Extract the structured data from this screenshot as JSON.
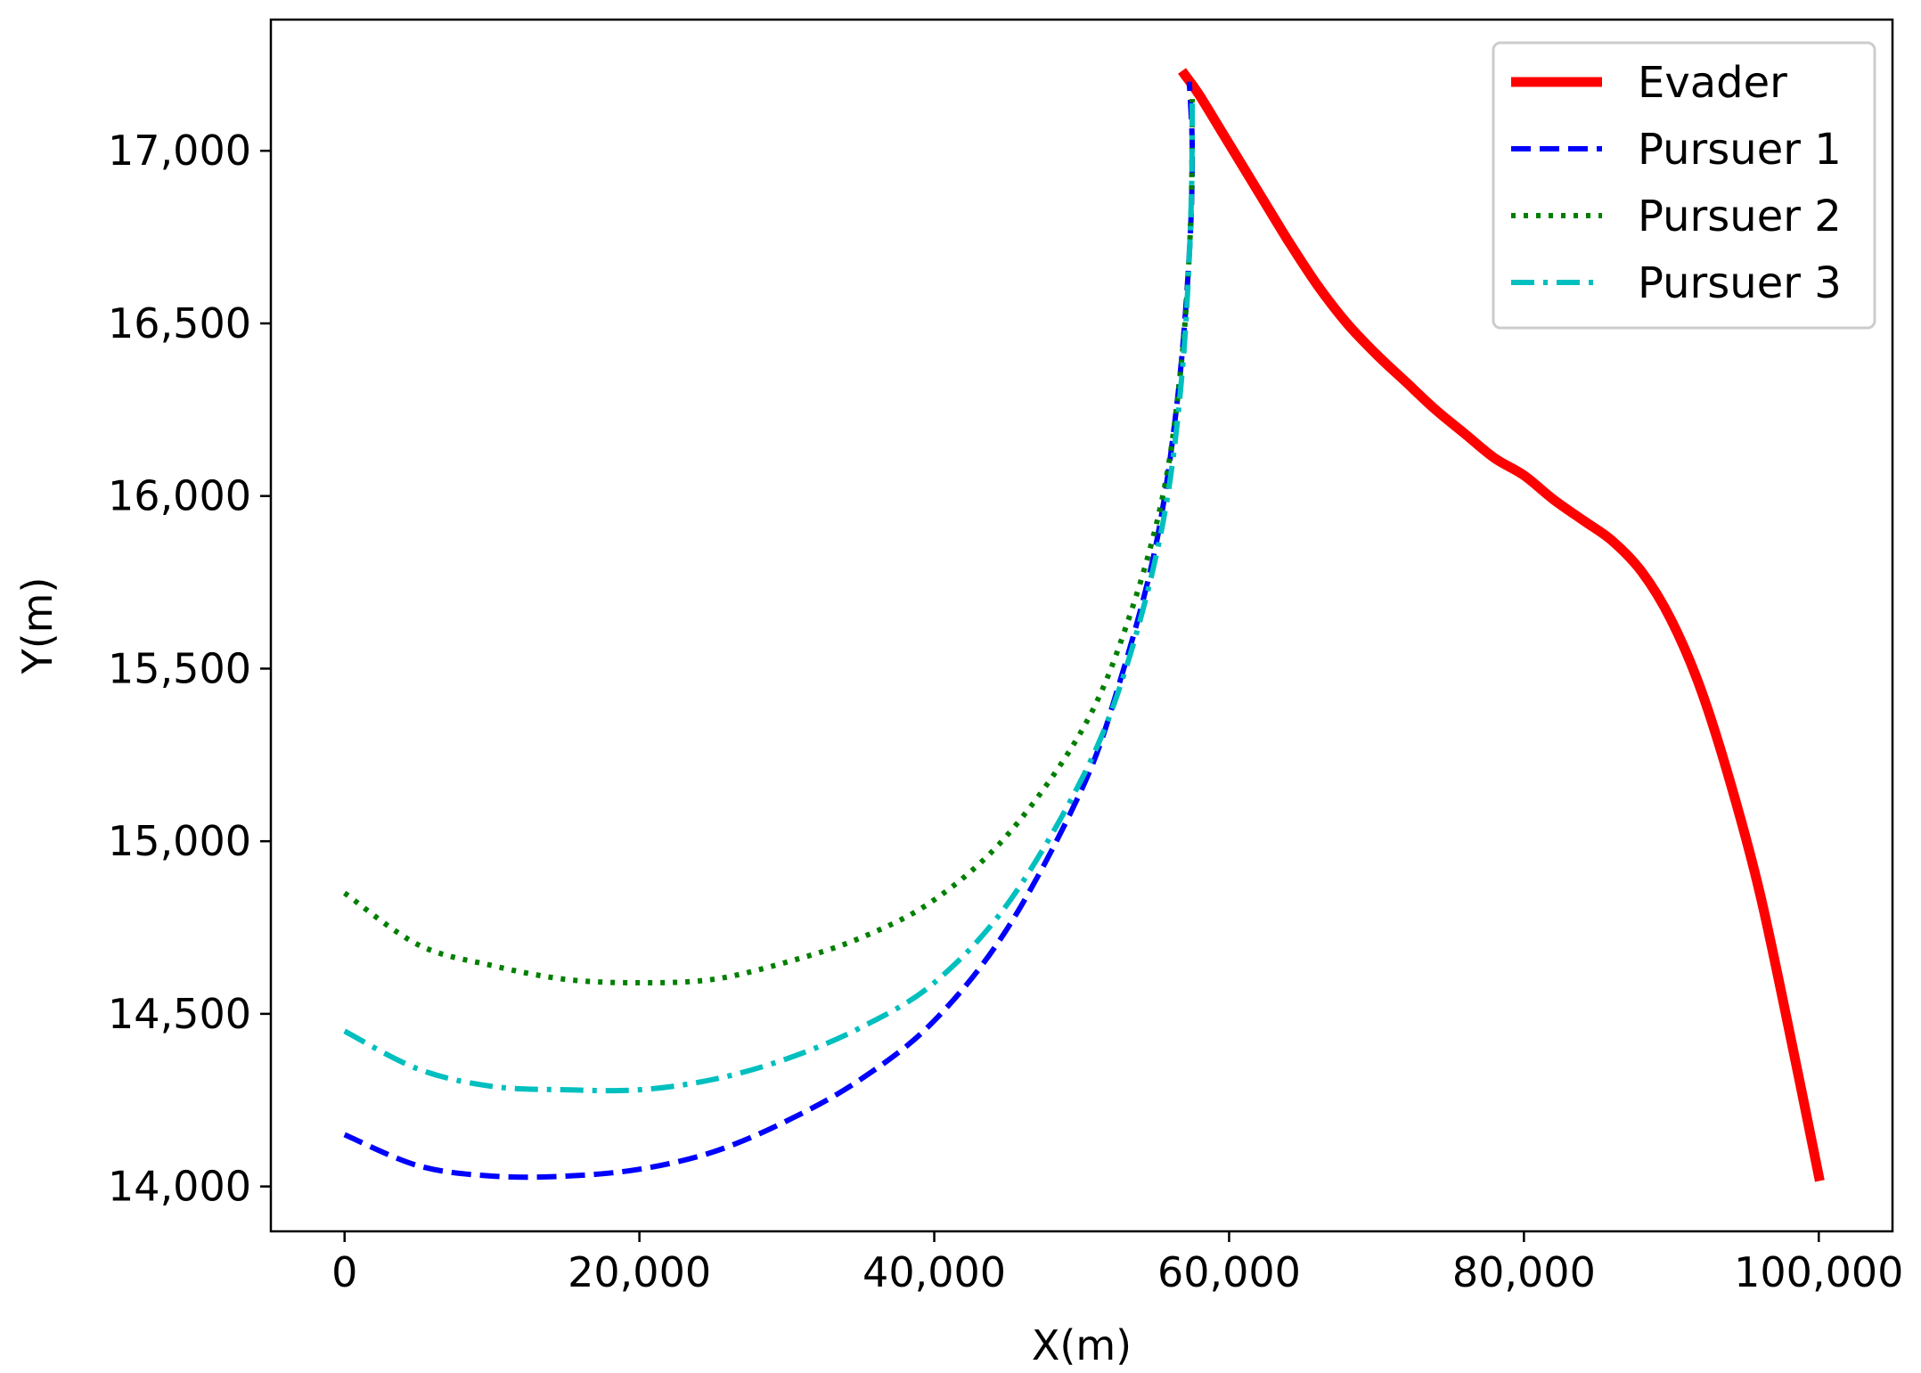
{
  "chart_data": {
    "type": "line",
    "title": "",
    "xlabel": "X(m)",
    "ylabel": "Y(m)",
    "xlim": [
      -5000,
      105000
    ],
    "ylim": [
      13870,
      17380
    ],
    "xticks": [
      0,
      20000,
      40000,
      60000,
      80000,
      100000
    ],
    "xtick_labels": [
      "0",
      "20,000",
      "40,000",
      "60,000",
      "80,000",
      "100,000"
    ],
    "yticks": [
      14000,
      14500,
      15000,
      15500,
      16000,
      16500,
      17000
    ],
    "ytick_labels": [
      "14,000",
      "14,500",
      "15,000",
      "15,500",
      "16,000",
      "16,500",
      "17,000"
    ],
    "grid": false,
    "legend_position": "top-right",
    "series": [
      {
        "name": "Evader",
        "color": "#ff0000",
        "style": "solid",
        "x": [
          100000,
          98000,
          96000,
          94000,
          92000,
          90000,
          88000,
          86000,
          84000,
          82000,
          80000,
          78000,
          76000,
          74000,
          72000,
          70000,
          68000,
          66000,
          64000,
          62000,
          60000,
          58000,
          57000
        ],
        "y": [
          14030,
          14450,
          14850,
          15170,
          15440,
          15640,
          15780,
          15870,
          15930,
          15990,
          16060,
          16110,
          16180,
          16250,
          16330,
          16410,
          16500,
          16610,
          16740,
          16880,
          17020,
          17160,
          17220
        ]
      },
      {
        "name": "Pursuer 1",
        "color": "#0000ff",
        "style": "dashed",
        "x": [
          0,
          5000,
          10000,
          15000,
          20000,
          25000,
          30000,
          35000,
          40000,
          45000,
          50000,
          52500,
          55000,
          56500,
          57300,
          57500,
          57300
        ],
        "y": [
          14150,
          14060,
          14030,
          14030,
          14050,
          14100,
          14190,
          14310,
          14480,
          14750,
          15150,
          15450,
          15850,
          16280,
          16700,
          17000,
          17200
        ]
      },
      {
        "name": "Pursuer 2",
        "color": "#007f00",
        "style": "dotted",
        "x": [
          0,
          5000,
          10000,
          15000,
          20000,
          25000,
          30000,
          35000,
          40000,
          45000,
          50000,
          53000,
          55500,
          56800,
          57400,
          57500
        ],
        "y": [
          14850,
          14700,
          14640,
          14600,
          14590,
          14600,
          14650,
          14720,
          14830,
          15020,
          15320,
          15620,
          16000,
          16400,
          16800,
          17150
        ]
      },
      {
        "name": "Pursuer 3",
        "color": "#00bfbf",
        "style": "dashdot",
        "x": [
          0,
          5000,
          10000,
          15000,
          20000,
          25000,
          30000,
          35000,
          40000,
          45000,
          50000,
          53000,
          55500,
          56800,
          57400,
          57500
        ],
        "y": [
          14450,
          14340,
          14290,
          14280,
          14280,
          14310,
          14370,
          14460,
          14590,
          14820,
          15180,
          15500,
          15920,
          16350,
          16800,
          17150
        ]
      }
    ]
  }
}
